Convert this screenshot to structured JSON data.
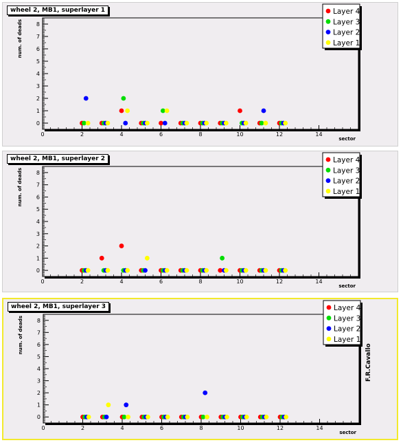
{
  "signature": "F.R.Cavallo",
  "colors": {
    "layer4": "#ff0000",
    "layer3": "#00dd00",
    "layer2": "#0000ff",
    "layer1": "#ffff00",
    "pad_bg": "#f0edf0",
    "active_border": "#f2ea2c"
  },
  "chart_data": [
    {
      "type": "scatter",
      "title": "wheel 2, MB1, superlayer 1",
      "xlabel": "sector",
      "ylabel": "num. of deads",
      "xlim": [
        0,
        16
      ],
      "ylim": [
        -0.5,
        8.5
      ],
      "xticks": [
        0,
        2,
        4,
        6,
        8,
        10,
        12,
        14
      ],
      "yticks": [
        0,
        1,
        2,
        3,
        4,
        5,
        6,
        7,
        8
      ],
      "legend_position": "top-right",
      "series": [
        {
          "name": "Layer 4",
          "color": "#ff0000",
          "x": [
            2,
            3,
            4,
            5,
            6,
            7,
            8,
            9,
            10,
            11,
            12
          ],
          "y": [
            0,
            0,
            1,
            0,
            0,
            0,
            0,
            0,
            1,
            0,
            0
          ]
        },
        {
          "name": "Layer 3",
          "color": "#00dd00",
          "x": [
            2.1,
            3.1,
            4.1,
            5.1,
            6.1,
            7.1,
            8.1,
            9.1,
            10.1,
            11.1,
            12.1
          ],
          "y": [
            0,
            0,
            2,
            0,
            1,
            0,
            0,
            0,
            0,
            0,
            0
          ]
        },
        {
          "name": "Layer 2",
          "color": "#0000ff",
          "x": [
            2.2,
            3.2,
            4.2,
            5.2,
            6.2,
            7.2,
            8.2,
            9.2,
            10.2,
            11.2,
            12.2
          ],
          "y": [
            2,
            0,
            0,
            0,
            0,
            0,
            0,
            0,
            0,
            1,
            0
          ]
        },
        {
          "name": "Layer 1",
          "color": "#ffff00",
          "x": [
            2.3,
            3.3,
            4.3,
            5.3,
            6.3,
            7.3,
            8.3,
            9.3,
            10.3,
            11.3,
            12.3
          ],
          "y": [
            0,
            0,
            1,
            0,
            1,
            0,
            0,
            0,
            0,
            0,
            0
          ]
        }
      ]
    },
    {
      "type": "scatter",
      "title": "wheel 2, MB1, superlayer 2",
      "xlabel": "sector",
      "ylabel": "num. of deads",
      "xlim": [
        0,
        16
      ],
      "ylim": [
        -0.5,
        8.5
      ],
      "xticks": [
        0,
        2,
        4,
        6,
        8,
        10,
        12,
        14
      ],
      "yticks": [
        0,
        1,
        2,
        3,
        4,
        5,
        6,
        7,
        8
      ],
      "legend_position": "top-right",
      "series": [
        {
          "name": "Layer 4",
          "color": "#ff0000",
          "x": [
            2,
            3,
            4,
            5,
            6,
            7,
            8,
            9,
            10,
            11,
            12
          ],
          "y": [
            0,
            1,
            2,
            0,
            0,
            0,
            0,
            0,
            0,
            0,
            0
          ]
        },
        {
          "name": "Layer 3",
          "color": "#00dd00",
          "x": [
            2.1,
            3.1,
            4.1,
            5.1,
            6.1,
            7.1,
            8.1,
            9.1,
            10.1,
            11.1,
            12.1
          ],
          "y": [
            0,
            0,
            0,
            0,
            0,
            0,
            0,
            1,
            0,
            0,
            0
          ]
        },
        {
          "name": "Layer 2",
          "color": "#0000ff",
          "x": [
            2.2,
            3.2,
            4.2,
            5.2,
            6.2,
            7.2,
            8.2,
            9.2,
            10.2,
            11.2,
            12.2
          ],
          "y": [
            0,
            0,
            0,
            0,
            0,
            0,
            0,
            0,
            0,
            0,
            0
          ]
        },
        {
          "name": "Layer 1",
          "color": "#ffff00",
          "x": [
            2.3,
            3.3,
            4.3,
            5.3,
            6.3,
            7.3,
            8.3,
            9.3,
            10.3,
            11.3,
            12.3
          ],
          "y": [
            0,
            0,
            0,
            1,
            0,
            0,
            0,
            0,
            0,
            0,
            0
          ]
        }
      ]
    },
    {
      "type": "scatter",
      "title": "wheel 2, MB1, superlayer 3",
      "xlabel": "sector",
      "ylabel": "num. of deads",
      "xlim": [
        0,
        16
      ],
      "ylim": [
        -0.5,
        8.5
      ],
      "xticks": [
        0,
        2,
        4,
        6,
        8,
        10,
        12,
        14
      ],
      "yticks": [
        0,
        1,
        2,
        3,
        4,
        5,
        6,
        7,
        8
      ],
      "legend_position": "top-right",
      "series": [
        {
          "name": "Layer 4",
          "color": "#ff0000",
          "x": [
            2,
            3,
            4,
            5,
            6,
            7,
            8,
            9,
            10,
            11,
            12
          ],
          "y": [
            0,
            0,
            0,
            0,
            0,
            0,
            0,
            0,
            0,
            0,
            0
          ]
        },
        {
          "name": "Layer 3",
          "color": "#00dd00",
          "x": [
            2.1,
            3.1,
            4.1,
            5.1,
            6.1,
            7.1,
            8.1,
            9.1,
            10.1,
            11.1,
            12.1
          ],
          "y": [
            0,
            0,
            0,
            0,
            0,
            0,
            0,
            0,
            0,
            0,
            0
          ]
        },
        {
          "name": "Layer 2",
          "color": "#0000ff",
          "x": [
            2.2,
            3.2,
            4.2,
            5.2,
            6.2,
            7.2,
            8.2,
            9.2,
            10.2,
            11.2,
            12.2
          ],
          "y": [
            0,
            0,
            1,
            0,
            0,
            0,
            2,
            0,
            0,
            0,
            0
          ]
        },
        {
          "name": "Layer 1",
          "color": "#ffff00",
          "x": [
            2.3,
            3.3,
            4.3,
            5.3,
            6.3,
            7.3,
            8.3,
            9.3,
            10.3,
            11.3,
            12.3
          ],
          "y": [
            0,
            1,
            0,
            0,
            0,
            0,
            0,
            0,
            0,
            0,
            0
          ]
        }
      ]
    }
  ]
}
